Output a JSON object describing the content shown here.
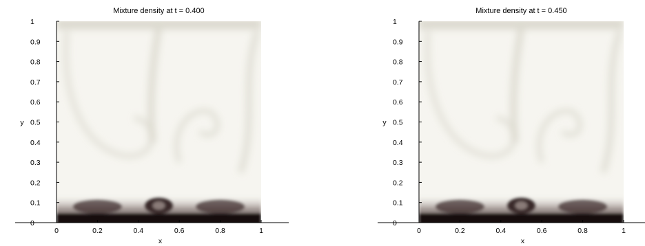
{
  "chart_data": [
    {
      "type": "heatmap",
      "title": "Mixture density at t = 0.400",
      "xlabel": "x",
      "ylabel": "y",
      "xlim": [
        0,
        1
      ],
      "ylim": [
        0,
        1
      ],
      "xticks": [
        "0",
        "0.2",
        "0.4",
        "0.6",
        "0.8",
        "1"
      ],
      "yticks": [
        "0",
        "0.1",
        "0.2",
        "0.3",
        "0.4",
        "0.5",
        "0.6",
        "0.7",
        "0.8",
        "0.9",
        "1"
      ],
      "grid": false,
      "colormap": [
        "#f6f5f0",
        "#d9d7cc",
        "#8a7b78",
        "#3a2a2a",
        "#120a0a"
      ],
      "t": 0.4
    },
    {
      "type": "heatmap",
      "title": "Mixture density at t = 0.450",
      "xlabel": "x",
      "ylabel": "y",
      "xlim": [
        0,
        1
      ],
      "ylim": [
        0,
        1
      ],
      "xticks": [
        "0",
        "0.2",
        "0.4",
        "0.6",
        "0.8",
        "1"
      ],
      "yticks": [
        "0",
        "0.1",
        "0.2",
        "0.3",
        "0.4",
        "0.5",
        "0.6",
        "0.7",
        "0.8",
        "0.9",
        "1"
      ],
      "grid": false,
      "colormap": [
        "#f6f5f0",
        "#d9d7cc",
        "#8a7b78",
        "#3a2a2a",
        "#120a0a"
      ],
      "t": 0.45
    }
  ]
}
